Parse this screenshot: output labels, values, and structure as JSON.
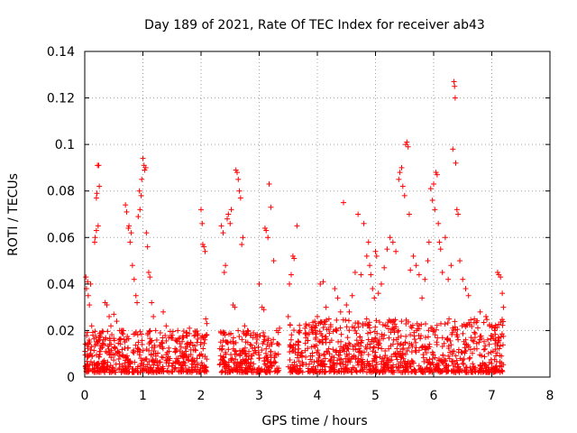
{
  "chart_data": {
    "type": "scatter",
    "title": "Day 189 of 2021, Rate Of TEC Index for receiver ab43",
    "xlabel": "GPS time / hours",
    "ylabel": "ROTI / TECUs",
    "xlim": [
      0,
      8
    ],
    "ylim": [
      0,
      0.14
    ],
    "xticks": [
      "0",
      "1",
      "2",
      "3",
      "4",
      "5",
      "6",
      "7",
      "8"
    ],
    "yticks": [
      "0",
      "0.02",
      "0.04",
      "0.06",
      "0.08",
      "0.1",
      "0.12",
      "0.14"
    ],
    "grid": true,
    "marker": "+",
    "color": "#ff0000",
    "series": [
      {
        "name": "ROTI",
        "points": [
          [
            0.02,
            0.043
          ],
          [
            0.03,
            0.038
          ],
          [
            0.05,
            0.041
          ],
          [
            0.06,
            0.035
          ],
          [
            0.08,
            0.031
          ],
          [
            0.1,
            0.04
          ],
          [
            0.12,
            0.022
          ],
          [
            0.14,
            0.018
          ],
          [
            0.17,
            0.058
          ],
          [
            0.18,
            0.06
          ],
          [
            0.2,
            0.077
          ],
          [
            0.21,
            0.079
          ],
          [
            0.22,
            0.091
          ],
          [
            0.24,
            0.091
          ],
          [
            0.23,
            0.065
          ],
          [
            0.25,
            0.082
          ],
          [
            0.2,
            0.063
          ],
          [
            0.26,
            0.018
          ],
          [
            0.28,
            0.019
          ],
          [
            0.32,
            0.016
          ],
          [
            0.35,
            0.032
          ],
          [
            0.38,
            0.031
          ],
          [
            0.42,
            0.026
          ],
          [
            0.45,
            0.022
          ],
          [
            0.5,
            0.027
          ],
          [
            0.55,
            0.024
          ],
          [
            0.6,
            0.02
          ],
          [
            0.65,
            0.02
          ],
          [
            0.7,
            0.074
          ],
          [
            0.72,
            0.071
          ],
          [
            0.75,
            0.064
          ],
          [
            0.76,
            0.065
          ],
          [
            0.78,
            0.058
          ],
          [
            0.8,
            0.062
          ],
          [
            0.82,
            0.048
          ],
          [
            0.85,
            0.042
          ],
          [
            0.88,
            0.035
          ],
          [
            0.9,
            0.032
          ],
          [
            0.92,
            0.069
          ],
          [
            0.94,
            0.08
          ],
          [
            0.95,
            0.072
          ],
          [
            0.97,
            0.078
          ],
          [
            0.98,
            0.085
          ],
          [
            1.0,
            0.094
          ],
          [
            1.02,
            0.091
          ],
          [
            1.03,
            0.089
          ],
          [
            1.05,
            0.09
          ],
          [
            1.06,
            0.062
          ],
          [
            1.08,
            0.056
          ],
          [
            1.1,
            0.045
          ],
          [
            1.12,
            0.043
          ],
          [
            1.15,
            0.032
          ],
          [
            1.18,
            0.026
          ],
          [
            1.22,
            0.02
          ],
          [
            1.3,
            0.019
          ],
          [
            1.35,
            0.028
          ],
          [
            1.4,
            0.022
          ],
          [
            1.5,
            0.018
          ],
          [
            1.6,
            0.02
          ],
          [
            1.7,
            0.017
          ],
          [
            1.8,
            0.021
          ],
          [
            1.9,
            0.018
          ],
          [
            2.0,
            0.072
          ],
          [
            2.02,
            0.066
          ],
          [
            2.03,
            0.057
          ],
          [
            2.05,
            0.056
          ],
          [
            2.07,
            0.054
          ],
          [
            2.08,
            0.025
          ],
          [
            2.1,
            0.023
          ],
          [
            2.35,
            0.065
          ],
          [
            2.38,
            0.062
          ],
          [
            2.4,
            0.045
          ],
          [
            2.42,
            0.048
          ],
          [
            2.45,
            0.068
          ],
          [
            2.47,
            0.07
          ],
          [
            2.5,
            0.066
          ],
          [
            2.52,
            0.072
          ],
          [
            2.55,
            0.031
          ],
          [
            2.58,
            0.03
          ],
          [
            2.6,
            0.089
          ],
          [
            2.62,
            0.088
          ],
          [
            2.64,
            0.085
          ],
          [
            2.66,
            0.08
          ],
          [
            2.68,
            0.077
          ],
          [
            2.7,
            0.057
          ],
          [
            2.72,
            0.06
          ],
          [
            2.75,
            0.022
          ],
          [
            2.8,
            0.02
          ],
          [
            2.85,
            0.018
          ],
          [
            2.9,
            0.019
          ],
          [
            3.0,
            0.04
          ],
          [
            3.05,
            0.03
          ],
          [
            3.08,
            0.029
          ],
          [
            3.1,
            0.064
          ],
          [
            3.12,
            0.063
          ],
          [
            3.15,
            0.06
          ],
          [
            3.17,
            0.083
          ],
          [
            3.2,
            0.073
          ],
          [
            3.25,
            0.05
          ],
          [
            3.3,
            0.02
          ],
          [
            3.35,
            0.021
          ],
          [
            3.5,
            0.026
          ],
          [
            3.52,
            0.04
          ],
          [
            3.55,
            0.044
          ],
          [
            3.58,
            0.052
          ],
          [
            3.6,
            0.051
          ],
          [
            3.65,
            0.065
          ],
          [
            3.7,
            0.02
          ],
          [
            3.8,
            0.019
          ],
          [
            3.9,
            0.021
          ],
          [
            4.0,
            0.026
          ],
          [
            4.05,
            0.04
          ],
          [
            4.1,
            0.041
          ],
          [
            4.15,
            0.03
          ],
          [
            4.2,
            0.025
          ],
          [
            4.3,
            0.038
          ],
          [
            4.35,
            0.034
          ],
          [
            4.4,
            0.028
          ],
          [
            4.45,
            0.075
          ],
          [
            4.5,
            0.031
          ],
          [
            4.55,
            0.028
          ],
          [
            4.6,
            0.035
          ],
          [
            4.65,
            0.045
          ],
          [
            4.7,
            0.07
          ],
          [
            4.75,
            0.044
          ],
          [
            4.8,
            0.066
          ],
          [
            4.85,
            0.052
          ],
          [
            4.88,
            0.058
          ],
          [
            4.9,
            0.048
          ],
          [
            4.92,
            0.044
          ],
          [
            4.95,
            0.038
          ],
          [
            4.98,
            0.034
          ],
          [
            5.0,
            0.054
          ],
          [
            5.02,
            0.052
          ],
          [
            5.05,
            0.036
          ],
          [
            5.1,
            0.04
          ],
          [
            5.15,
            0.047
          ],
          [
            5.2,
            0.055
          ],
          [
            5.25,
            0.06
          ],
          [
            5.3,
            0.058
          ],
          [
            5.35,
            0.054
          ],
          [
            5.4,
            0.085
          ],
          [
            5.42,
            0.088
          ],
          [
            5.45,
            0.09
          ],
          [
            5.47,
            0.082
          ],
          [
            5.5,
            0.078
          ],
          [
            5.52,
            0.1
          ],
          [
            5.54,
            0.101
          ],
          [
            5.56,
            0.099
          ],
          [
            5.58,
            0.07
          ],
          [
            5.6,
            0.046
          ],
          [
            5.65,
            0.052
          ],
          [
            5.7,
            0.048
          ],
          [
            5.75,
            0.044
          ],
          [
            5.8,
            0.034
          ],
          [
            5.85,
            0.042
          ],
          [
            5.9,
            0.05
          ],
          [
            5.92,
            0.058
          ],
          [
            5.95,
            0.081
          ],
          [
            5.98,
            0.076
          ],
          [
            6.0,
            0.083
          ],
          [
            6.02,
            0.072
          ],
          [
            6.04,
            0.088
          ],
          [
            6.06,
            0.087
          ],
          [
            6.08,
            0.066
          ],
          [
            6.1,
            0.058
          ],
          [
            6.12,
            0.055
          ],
          [
            6.15,
            0.045
          ],
          [
            6.2,
            0.06
          ],
          [
            6.25,
            0.042
          ],
          [
            6.3,
            0.048
          ],
          [
            6.33,
            0.098
          ],
          [
            6.35,
            0.127
          ],
          [
            6.36,
            0.125
          ],
          [
            6.37,
            0.12
          ],
          [
            6.38,
            0.092
          ],
          [
            6.4,
            0.072
          ],
          [
            6.42,
            0.07
          ],
          [
            6.45,
            0.05
          ],
          [
            6.5,
            0.042
          ],
          [
            6.55,
            0.038
          ],
          [
            6.6,
            0.035
          ],
          [
            6.7,
            0.025
          ],
          [
            6.8,
            0.028
          ],
          [
            6.9,
            0.026
          ],
          [
            7.0,
            0.022
          ],
          [
            7.05,
            0.02
          ],
          [
            7.1,
            0.045
          ],
          [
            7.12,
            0.044
          ],
          [
            7.15,
            0.043
          ],
          [
            7.18,
            0.036
          ],
          [
            7.2,
            0.03
          ]
        ],
        "dense_band": [
          {
            "x_range": [
              0.0,
              2.1
            ],
            "y_range": [
              0.002,
              0.02
            ]
          },
          {
            "x_range": [
              2.3,
              3.35
            ],
            "y_range": [
              0.002,
              0.02
            ]
          },
          {
            "x_range": [
              3.5,
              7.2
            ],
            "y_range": [
              0.002,
              0.025
            ]
          }
        ]
      }
    ]
  }
}
